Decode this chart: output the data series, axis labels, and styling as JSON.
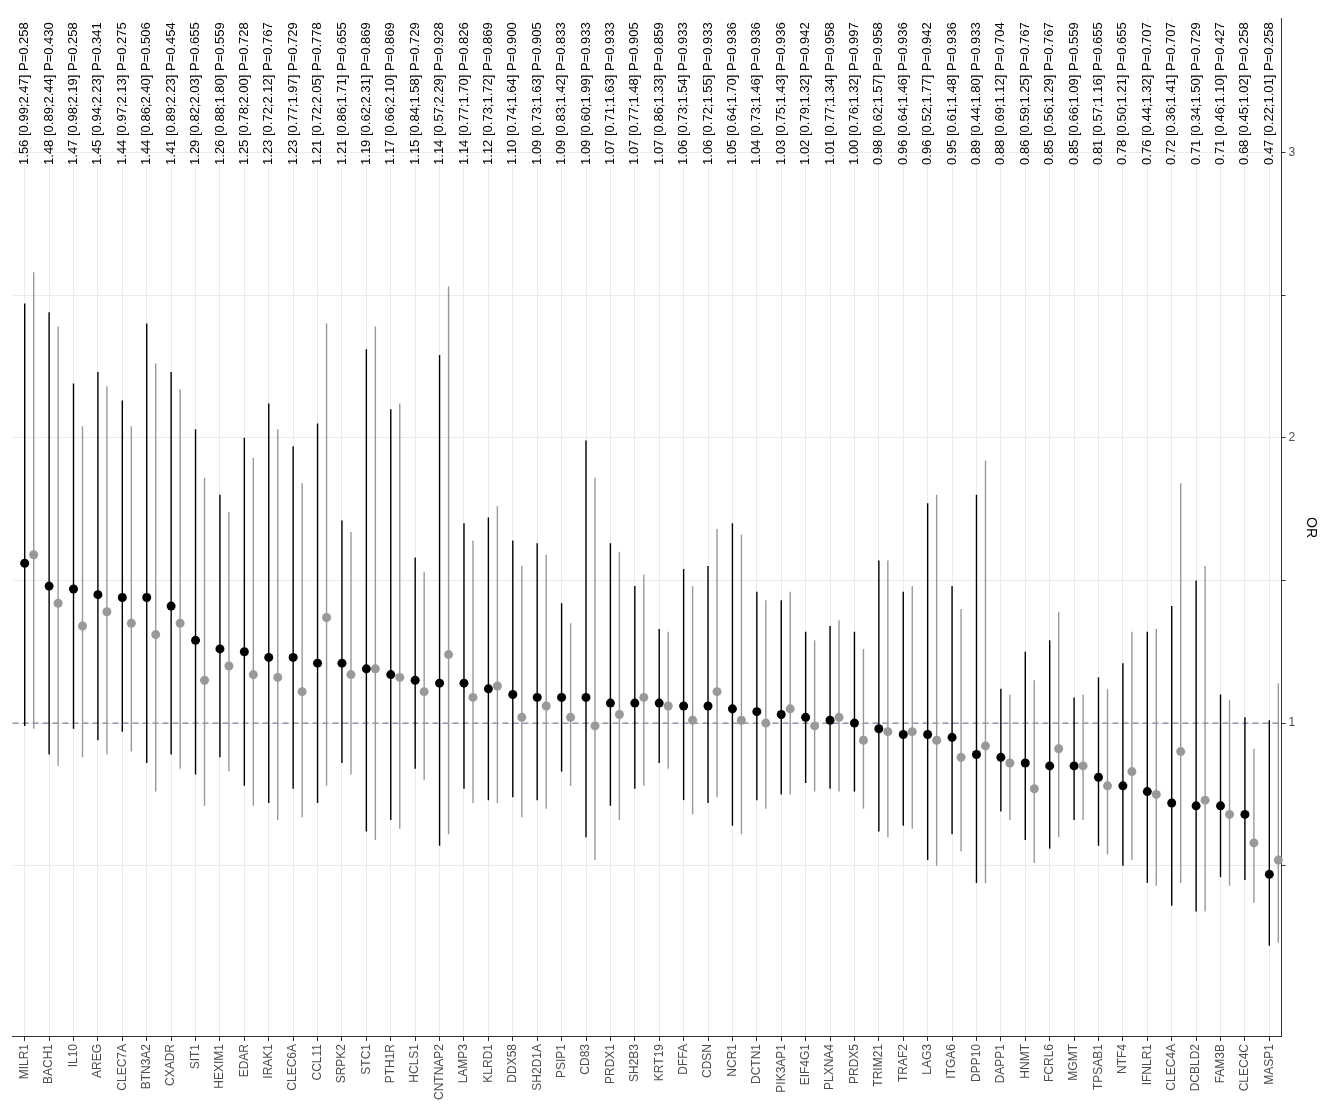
{
  "chart_data": {
    "type": "scatter",
    "ylabel": "OR",
    "ylim": [
      -0.1,
      3.47
    ],
    "yticks": [
      {
        "value": 0.5,
        "label": null
      },
      1,
      {
        "value": 1.5,
        "label": null
      },
      2,
      {
        "value": 2.5,
        "label": null
      },
      3
    ],
    "grid": true,
    "legend": false,
    "marker": "circle",
    "categories": [
      "MILR1",
      "BACH1",
      "IL10",
      "AREG",
      "CLEC7A",
      "BTN3A2",
      "CXADR",
      "SIT1",
      "HEXIM1",
      "EDAR",
      "IRAK1",
      "CLEC6A",
      "CCL11",
      "SRPK2",
      "STC1",
      "PTH1R",
      "HCLS1",
      "CNTNAP2",
      "LAMP3",
      "KLRD1",
      "DDX58",
      "SH2D1A",
      "PSIP1",
      "CD83",
      "PRDX1",
      "SH2B3",
      "KRT19",
      "DFFA",
      "CDSN",
      "NCR1",
      "DCTN1",
      "PIK3AP1",
      "EIF4G1",
      "PLXNA4",
      "PRDX5",
      "TRIM21",
      "TRAF2",
      "LAG3",
      "ITGA6",
      "DPP10",
      "DAPP1",
      "HNMT",
      "FCRL6",
      "MGMT",
      "TPSAB1",
      "NTF4",
      "IFNLR1",
      "CLEC4A",
      "DCBLD2",
      "FAM3B",
      "CLEC4C",
      "MASP1"
    ],
    "ref_lines": [
      {
        "axis": "y",
        "value": 1,
        "color": "#7f7f9f",
        "line_style": "dashed"
      }
    ],
    "annotations": [
      "1.56 [0.99;2.47] P=0.258",
      "1.48 [0.89;2.44] P=0.430",
      "1.47 [0.98;2.19] P=0.258",
      "1.45 [0.94;2.23] P=0.341",
      "1.44 [0.97;2.13] P=0.275",
      "1.44 [0.86;2.40] P=0.506",
      "1.41 [0.89;2.23] P=0.454",
      "1.29 [0.82;2.03] P=0.655",
      "1.26 [0.88;1.80] P=0.559",
      "1.25 [0.78;2.00] P=0.728",
      "1.23 [0.72;2.12] P=0.767",
      "1.23 [0.77;1.97] P=0.729",
      "1.21 [0.72;2.05] P=0.778",
      "1.21 [0.86;1.71] P=0.655",
      "1.19 [0.62;2.31] P=0.869",
      "1.17 [0.66;2.10] P=0.869",
      "1.15 [0.84;1.58] P=0.729",
      "1.14 [0.57;2.29] P=0.928",
      "1.14 [0.77;1.70] P=0.826",
      "1.12 [0.73;1.72] P=0.869",
      "1.10 [0.74;1.64] P=0.900",
      "1.09 [0.73;1.63] P=0.905",
      "1.09 [0.83;1.42] P=0.833",
      "1.09 [0.60;1.99] P=0.933",
      "1.07 [0.71;1.63] P=0.933",
      "1.07 [0.77;1.48] P=0.905",
      "1.07 [0.86;1.33] P=0.859",
      "1.06 [0.73;1.54] P=0.933",
      "1.06 [0.72;1.55] P=0.933",
      "1.05 [0.64;1.70] P=0.936",
      "1.04 [0.73;1.46] P=0.936",
      "1.03 [0.75;1.43] P=0.936",
      "1.02 [0.79;1.32] P=0.942",
      "1.01 [0.77;1.34] P=0.958",
      "1.00 [0.76;1.32] P=0.997",
      "0.98 [0.62;1.57] P=0.958",
      "0.96 [0.64;1.46] P=0.936",
      "0.96 [0.52;1.77] P=0.942",
      "0.95 [0.61;1.48] P=0.936",
      "0.89 [0.44;1.80] P=0.933",
      "0.88 [0.69;1.12] P=0.704",
      "0.86 [0.59;1.25] P=0.767",
      "0.85 [0.56;1.29] P=0.767",
      "0.85 [0.66;1.09] P=0.559",
      "0.81 [0.57;1.16] P=0.655",
      "0.78 [0.50;1.21] P=0.655",
      "0.76 [0.44;1.32] P=0.707",
      "0.72 [0.36;1.41] P=0.707",
      "0.71 [0.34;1.50] P=0.729",
      "0.71 [0.46;1.10] P=0.427",
      "0.68 [0.45;1.02] P=0.258",
      "0.47 [0.22;1.01] P=0.258"
    ],
    "series": [
      {
        "color": "#000000",
        "values": [
          1.56,
          1.48,
          1.47,
          1.45,
          1.44,
          1.44,
          1.41,
          1.29,
          1.26,
          1.25,
          1.23,
          1.23,
          1.21,
          1.21,
          1.19,
          1.17,
          1.15,
          1.14,
          1.14,
          1.12,
          1.1,
          1.09,
          1.09,
          1.09,
          1.07,
          1.07,
          1.07,
          1.06,
          1.06,
          1.05,
          1.04,
          1.03,
          1.02,
          1.01,
          1.0,
          0.98,
          0.96,
          0.96,
          0.95,
          0.89,
          0.88,
          0.86,
          0.85,
          0.85,
          0.81,
          0.78,
          0.76,
          0.72,
          0.71,
          0.71,
          0.68,
          0.47
        ],
        "errors": [
          [
            0.99,
            2.47
          ],
          [
            0.89,
            2.44
          ],
          [
            0.98,
            2.19
          ],
          [
            0.94,
            2.23
          ],
          [
            0.97,
            2.13
          ],
          [
            0.86,
            2.4
          ],
          [
            0.89,
            2.23
          ],
          [
            0.82,
            2.03
          ],
          [
            0.88,
            1.8
          ],
          [
            0.78,
            2.0
          ],
          [
            0.72,
            2.12
          ],
          [
            0.77,
            1.97
          ],
          [
            0.72,
            2.05
          ],
          [
            0.86,
            1.71
          ],
          [
            0.62,
            2.31
          ],
          [
            0.66,
            2.1
          ],
          [
            0.84,
            1.58
          ],
          [
            0.57,
            2.29
          ],
          [
            0.77,
            1.7
          ],
          [
            0.73,
            1.72
          ],
          [
            0.74,
            1.64
          ],
          [
            0.73,
            1.63
          ],
          [
            0.83,
            1.42
          ],
          [
            0.6,
            1.99
          ],
          [
            0.71,
            1.63
          ],
          [
            0.77,
            1.48
          ],
          [
            0.86,
            1.33
          ],
          [
            0.73,
            1.54
          ],
          [
            0.72,
            1.55
          ],
          [
            0.64,
            1.7
          ],
          [
            0.73,
            1.46
          ],
          [
            0.75,
            1.43
          ],
          [
            0.79,
            1.32
          ],
          [
            0.77,
            1.34
          ],
          [
            0.76,
            1.32
          ],
          [
            0.62,
            1.57
          ],
          [
            0.64,
            1.46
          ],
          [
            0.52,
            1.77
          ],
          [
            0.61,
            1.48
          ],
          [
            0.44,
            1.8
          ],
          [
            0.69,
            1.12
          ],
          [
            0.59,
            1.25
          ],
          [
            0.56,
            1.29
          ],
          [
            0.66,
            1.09
          ],
          [
            0.57,
            1.16
          ],
          [
            0.5,
            1.21
          ],
          [
            0.44,
            1.32
          ],
          [
            0.36,
            1.41
          ],
          [
            0.34,
            1.5
          ],
          [
            0.46,
            1.1
          ],
          [
            0.45,
            1.02
          ],
          [
            0.22,
            1.01
          ]
        ]
      },
      {
        "color": "#999999",
        "values": [
          1.59,
          1.42,
          1.34,
          1.39,
          1.35,
          1.31,
          1.35,
          1.15,
          1.2,
          1.17,
          1.16,
          1.11,
          1.37,
          1.17,
          1.19,
          1.16,
          1.11,
          1.24,
          1.09,
          1.13,
          1.02,
          1.06,
          1.02,
          0.99,
          1.03,
          1.09,
          1.06,
          1.01,
          1.11,
          1.01,
          1.0,
          1.05,
          0.99,
          1.02,
          0.94,
          0.97,
          0.97,
          0.94,
          0.88,
          0.92,
          0.86,
          0.77,
          0.91,
          0.85,
          0.78,
          0.83,
          0.75,
          0.9,
          0.73,
          0.68,
          0.58,
          0.52
        ],
        "errors": [
          [
            0.98,
            2.58
          ],
          [
            0.85,
            2.39
          ],
          [
            0.88,
            2.04
          ],
          [
            0.89,
            2.18
          ],
          [
            0.9,
            2.04
          ],
          [
            0.76,
            2.26
          ],
          [
            0.84,
            2.17
          ],
          [
            0.71,
            1.86
          ],
          [
            0.83,
            1.74
          ],
          [
            0.71,
            1.93
          ],
          [
            0.66,
            2.03
          ],
          [
            0.67,
            1.84
          ],
          [
            0.78,
            2.4
          ],
          [
            0.82,
            1.67
          ],
          [
            0.59,
            2.39
          ],
          [
            0.63,
            2.12
          ],
          [
            0.8,
            1.53
          ],
          [
            0.61,
            2.53
          ],
          [
            0.72,
            1.64
          ],
          [
            0.72,
            1.76
          ],
          [
            0.67,
            1.55
          ],
          [
            0.7,
            1.59
          ],
          [
            0.78,
            1.35
          ],
          [
            0.52,
            1.86
          ],
          [
            0.66,
            1.6
          ],
          [
            0.78,
            1.52
          ],
          [
            0.84,
            1.32
          ],
          [
            0.68,
            1.48
          ],
          [
            0.74,
            1.68
          ],
          [
            0.61,
            1.66
          ],
          [
            0.7,
            1.43
          ],
          [
            0.75,
            1.46
          ],
          [
            0.76,
            1.29
          ],
          [
            0.76,
            1.36
          ],
          [
            0.7,
            1.26
          ],
          [
            0.6,
            1.57
          ],
          [
            0.63,
            1.48
          ],
          [
            0.5,
            1.8
          ],
          [
            0.55,
            1.4
          ],
          [
            0.44,
            1.92
          ],
          [
            0.66,
            1.1
          ],
          [
            0.51,
            1.15
          ],
          [
            0.6,
            1.39
          ],
          [
            0.66,
            1.1
          ],
          [
            0.54,
            1.12
          ],
          [
            0.52,
            1.32
          ],
          [
            0.43,
            1.33
          ],
          [
            0.44,
            1.84
          ],
          [
            0.34,
            1.55
          ],
          [
            0.43,
            1.08
          ],
          [
            0.37,
            0.91
          ],
          [
            0.23,
            1.14
          ]
        ]
      }
    ]
  }
}
